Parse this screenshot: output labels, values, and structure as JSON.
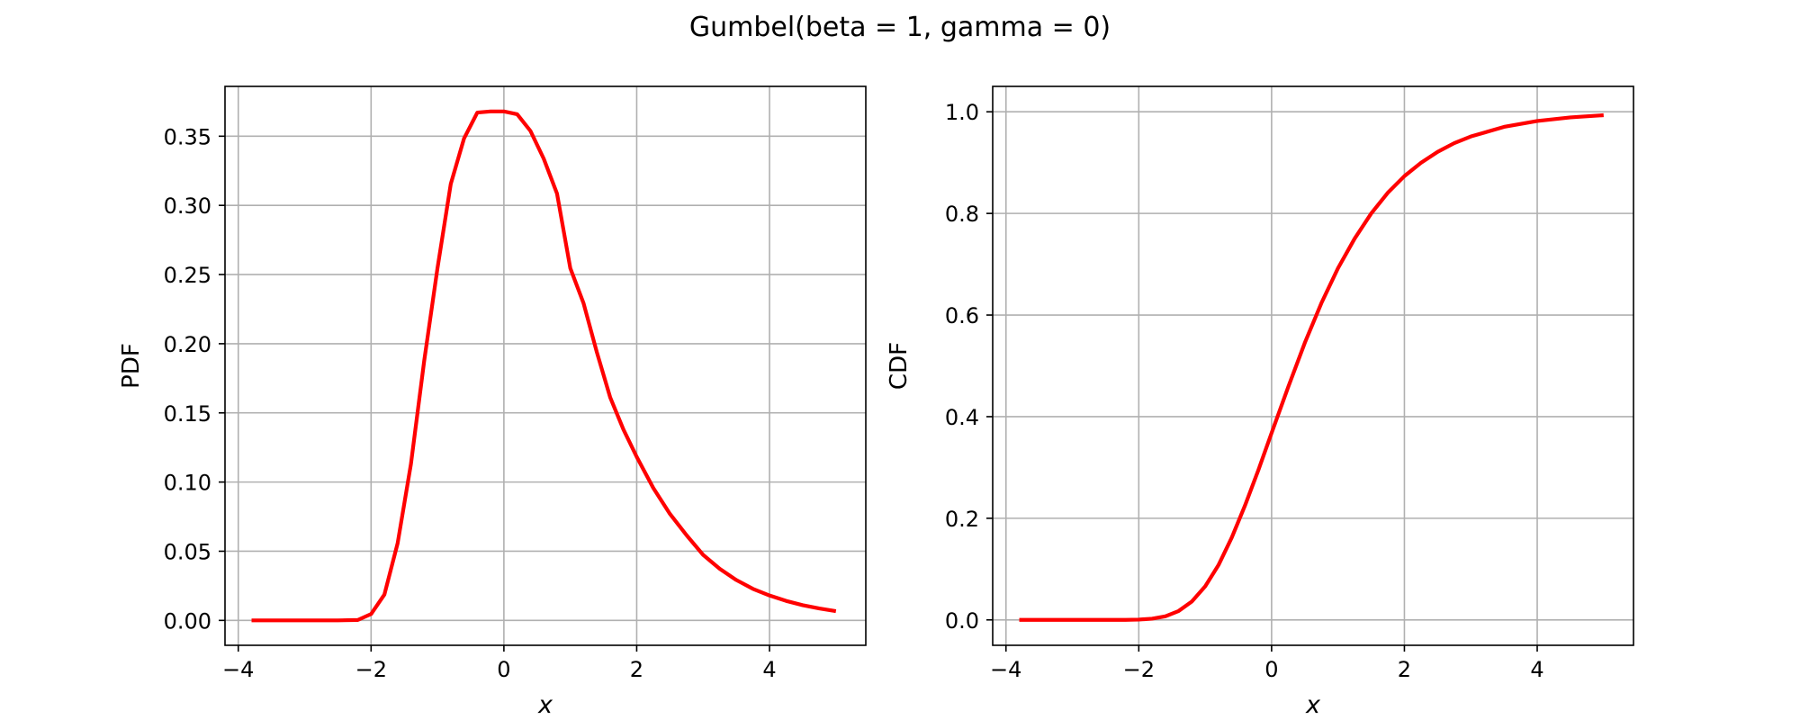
{
  "figure": {
    "title": "Gumbel(beta = 1, gamma = 0)"
  },
  "chart_data": [
    {
      "type": "line",
      "panel": "left",
      "title": "",
      "xlabel": "x",
      "ylabel": "PDF",
      "xlim": [
        -4.2,
        5.45
      ],
      "ylim": [
        -0.018,
        0.386
      ],
      "xticks": [
        -4,
        -2,
        0,
        2,
        4
      ],
      "xtick_labels": [
        "−4",
        "−2",
        "0",
        "2",
        "4"
      ],
      "yticks": [
        0.0,
        0.05,
        0.1,
        0.15,
        0.2,
        0.25,
        0.3,
        0.35
      ],
      "ytick_labels": [
        "0.00",
        "0.05",
        "0.10",
        "0.15",
        "0.20",
        "0.25",
        "0.30",
        "0.35"
      ],
      "grid": true,
      "legend": "none",
      "series": [
        {
          "color": "#ff0000",
          "x": [
            -3.8,
            -3.0,
            -2.5,
            -2.2,
            -2.0,
            -1.8,
            -1.6,
            -1.4,
            -1.2,
            -1.0,
            -0.8,
            -0.6,
            -0.4,
            -0.2,
            0.0,
            0.2,
            0.4,
            0.6,
            0.8,
            1.0,
            1.2,
            1.4,
            1.6,
            1.8,
            2.0,
            2.25,
            2.5,
            2.75,
            3.0,
            3.25,
            3.5,
            3.75,
            4.0,
            4.25,
            4.5,
            4.75,
            5.0
          ],
          "y": [
            0.0,
            0.0,
            2e-05,
            0.00031,
            0.0046,
            0.0186,
            0.0558,
            0.113,
            0.1877,
            0.2546,
            0.3155,
            0.3484,
            0.3671,
            0.3679,
            0.3679,
            0.3659,
            0.3538,
            0.3337,
            0.3085,
            0.2546,
            0.2292,
            0.1938,
            0.1613,
            0.138,
            0.1182,
            0.0957,
            0.077,
            0.0616,
            0.0474,
            0.0373,
            0.0292,
            0.0228,
            0.018,
            0.0141,
            0.011,
            0.0086,
            0.0067
          ]
        }
      ]
    },
    {
      "type": "line",
      "panel": "right",
      "title": "",
      "xlabel": "x",
      "ylabel": "CDF",
      "xlim": [
        -4.2,
        5.45
      ],
      "ylim": [
        -0.05,
        1.05
      ],
      "xticks": [
        -4,
        -2,
        0,
        2,
        4
      ],
      "xtick_labels": [
        "−4",
        "−2",
        "0",
        "2",
        "4"
      ],
      "yticks": [
        0.0,
        0.2,
        0.4,
        0.6,
        0.8,
        1.0
      ],
      "ytick_labels": [
        "0.0",
        "0.2",
        "0.4",
        "0.6",
        "0.8",
        "1.0"
      ],
      "grid": true,
      "legend": "none",
      "series": [
        {
          "color": "#ff0000",
          "x": [
            -3.8,
            -3.0,
            -2.5,
            -2.2,
            -2.0,
            -1.8,
            -1.6,
            -1.4,
            -1.2,
            -1.0,
            -0.8,
            -0.6,
            -0.4,
            -0.2,
            0.0,
            0.25,
            0.5,
            0.75,
            1.0,
            1.25,
            1.5,
            1.75,
            2.0,
            2.25,
            2.5,
            2.75,
            3.0,
            3.5,
            4.0,
            4.5,
            5.0
          ],
          "y": [
            0.0,
            0.0,
            0.0,
            0.0001,
            0.0006,
            0.0024,
            0.007,
            0.0175,
            0.0363,
            0.066,
            0.1078,
            0.162,
            0.2253,
            0.2946,
            0.3679,
            0.4583,
            0.5452,
            0.6235,
            0.6922,
            0.7503,
            0.7999,
            0.8407,
            0.8734,
            0.8996,
            0.9212,
            0.9383,
            0.9514,
            0.9703,
            0.9819,
            0.989,
            0.9933
          ]
        }
      ]
    }
  ]
}
